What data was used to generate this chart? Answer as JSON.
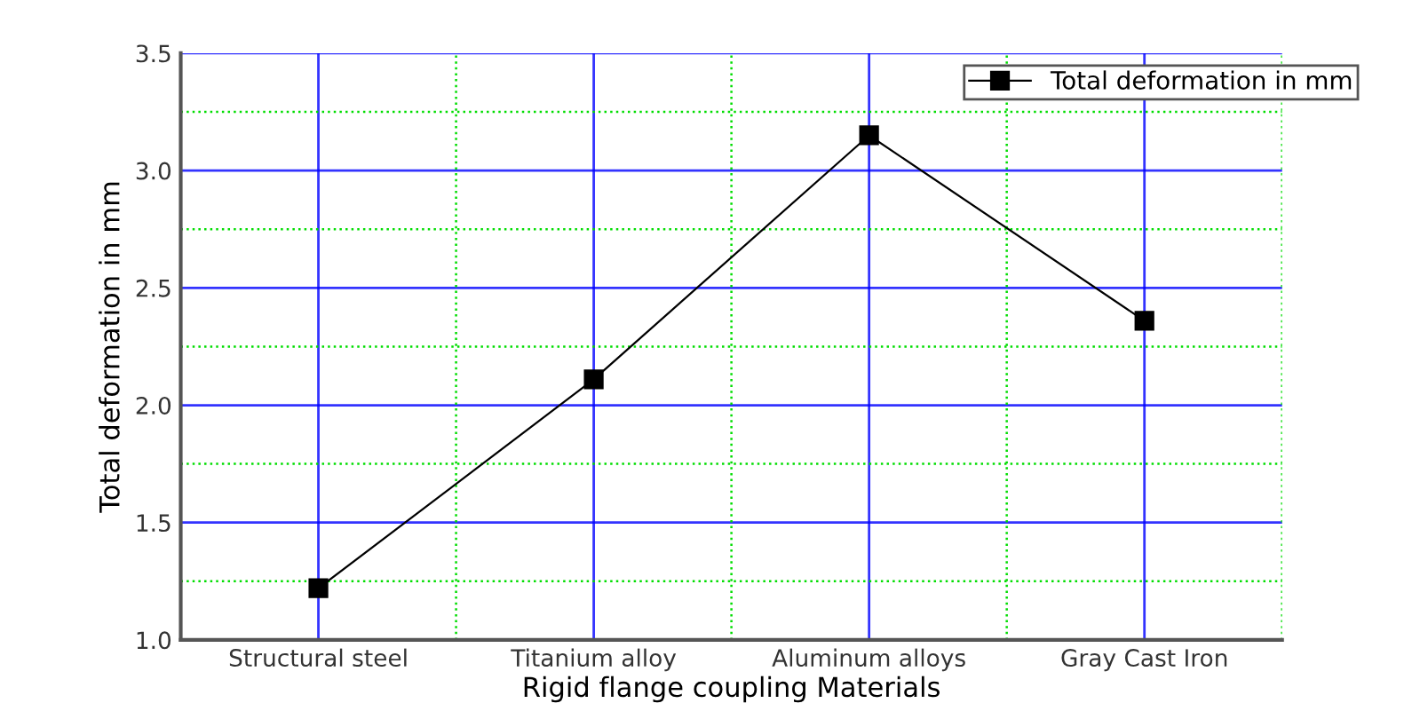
{
  "chart_data": {
    "type": "line",
    "xlabel": "Rigid flange coupling Materials",
    "ylabel": "Total deformation in mm",
    "categories": [
      "Structural steel",
      "Titanium alloy",
      "Aluminum alloys",
      "Gray Cast Iron"
    ],
    "series": [
      {
        "name": "Total deformation in mm",
        "color": "#000000",
        "values": [
          1.22,
          2.11,
          3.15,
          2.36
        ]
      }
    ],
    "ylim": [
      1.0,
      3.5
    ],
    "yticks": [
      {
        "value": 1.0,
        "label": "1.0"
      },
      {
        "value": 1.5,
        "label": "1.5"
      },
      {
        "value": 2.0,
        "label": "2.0"
      },
      {
        "value": 2.5,
        "label": "2.5"
      },
      {
        "value": 3.0,
        "label": "3.0"
      },
      {
        "value": 3.5,
        "label": "3.5"
      }
    ],
    "grid": true,
    "legend": "top right",
    "marker": "square",
    "line_style": "solid"
  }
}
